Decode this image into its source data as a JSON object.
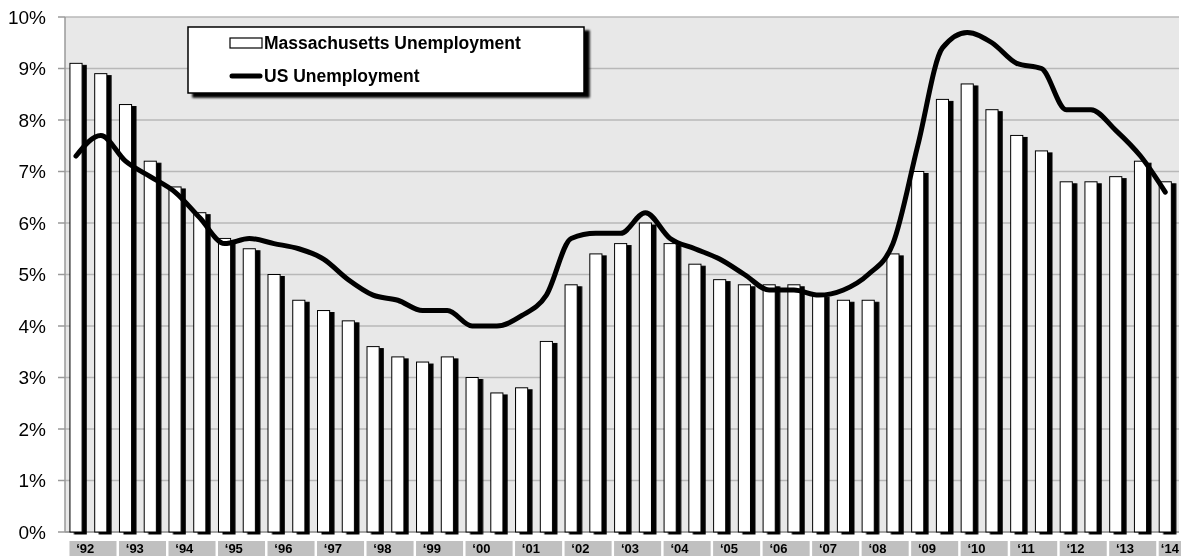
{
  "chart_data": {
    "type": "bar",
    "categories": [
      "‘92",
      null,
      "‘93",
      null,
      "‘94",
      null,
      "‘95",
      null,
      "‘96",
      null,
      "‘97",
      null,
      "‘98",
      null,
      "‘99",
      null,
      "‘00",
      null,
      "‘01",
      null,
      "‘02",
      null,
      "‘03",
      null,
      "‘04",
      null,
      "‘05",
      null,
      "‘06",
      null,
      "‘07",
      null,
      "‘08",
      null,
      "‘09",
      null,
      "‘10",
      null,
      "‘11",
      null,
      "‘12",
      null,
      "‘13",
      null,
      "‘14"
    ],
    "series": [
      {
        "name": "Massachusetts Unemployment",
        "color": "#ffffff",
        "values": [
          9.1,
          8.9,
          8.3,
          7.2,
          6.7,
          6.2,
          5.7,
          5.5,
          5.0,
          4.5,
          4.3,
          4.1,
          3.6,
          3.4,
          3.3,
          3.4,
          3.0,
          2.7,
          2.8,
          3.7,
          4.8,
          5.4,
          5.6,
          6.0,
          5.6,
          5.2,
          4.9,
          4.8,
          4.8,
          4.8,
          4.6,
          4.5,
          4.5,
          5.4,
          7.0,
          8.4,
          8.7,
          8.2,
          7.7,
          7.4,
          6.8,
          6.8,
          6.9,
          7.2,
          6.8
        ]
      },
      {
        "name": "US Unemployment",
        "type": "line",
        "color": "#000000",
        "values": [
          7.3,
          7.7,
          7.2,
          6.9,
          6.6,
          6.1,
          5.6,
          5.7,
          5.6,
          5.5,
          5.3,
          4.9,
          4.6,
          4.5,
          4.3,
          4.3,
          4.0,
          4.0,
          4.2,
          4.6,
          5.7,
          5.8,
          5.8,
          6.2,
          5.7,
          5.5,
          5.3,
          5.0,
          4.7,
          4.7,
          4.6,
          4.7,
          5.0,
          5.6,
          7.5,
          9.4,
          9.7,
          9.5,
          9.1,
          9.0,
          8.2,
          8.2,
          7.8,
          7.3,
          6.6
        ]
      }
    ],
    "ylim": [
      0,
      10
    ],
    "yticks": [
      {
        "value": 0,
        "label": "0%"
      },
      {
        "value": 1,
        "label": "1%"
      },
      {
        "value": 2,
        "label": "2%"
      },
      {
        "value": 3,
        "label": "3%"
      },
      {
        "value": 4,
        "label": "4%"
      },
      {
        "value": 5,
        "label": "5%"
      },
      {
        "value": 6,
        "label": "6%"
      },
      {
        "value": 7,
        "label": "7%"
      },
      {
        "value": 8,
        "label": "8%"
      },
      {
        "value": 9,
        "label": "9%"
      },
      {
        "value": 10,
        "label": "10%"
      }
    ],
    "grid": "y",
    "legend": "top left"
  }
}
